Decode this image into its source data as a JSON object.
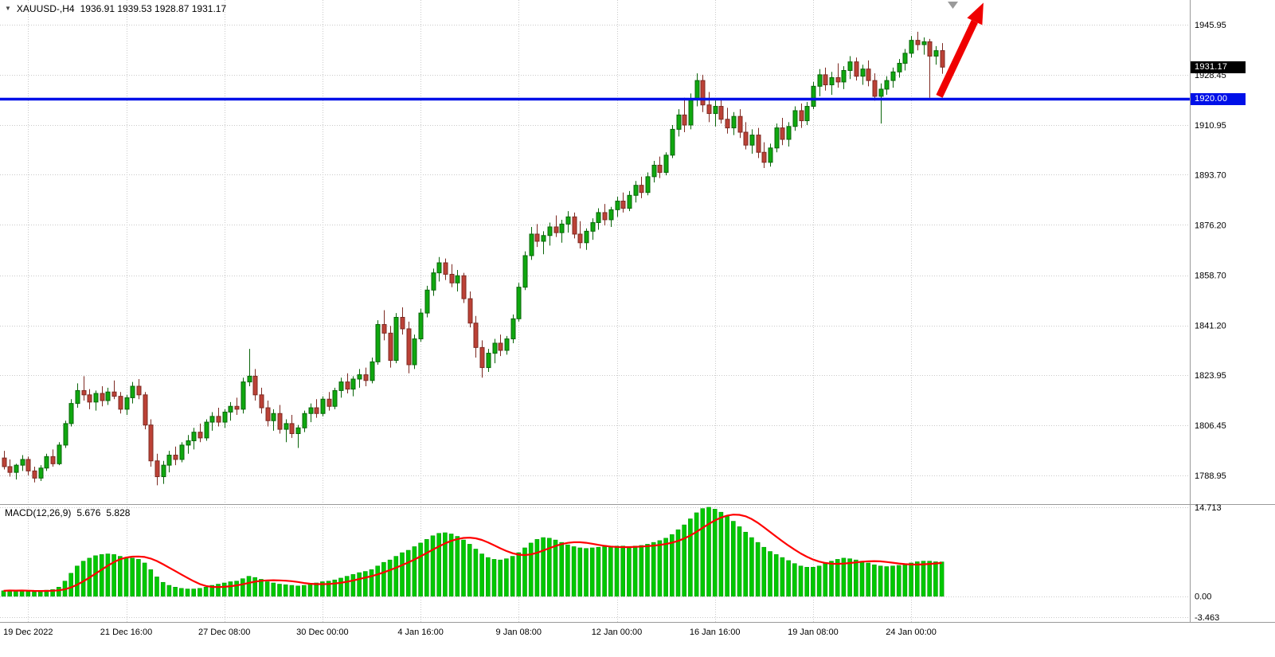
{
  "header": {
    "symbol_period": "XAUUSD-,H4",
    "ohlc": "1936.91 1939.53 1928.87 1931.17"
  },
  "icons": {
    "expand_triangle": "▼",
    "chart_shift_marker": "▼"
  },
  "colors": {
    "background": "#ffffff",
    "grid": "#c9c9c9",
    "up": {
      "fill": "#0fa80f",
      "border": "#0a650a"
    },
    "down": {
      "fill": "#bc4136",
      "border": "#7d2a22"
    },
    "support_line": "#0010e8",
    "arrow": "#f00000"
  },
  "chart_data": {
    "type": "candlestick",
    "symbol": "XAUUSD-",
    "timeframe": "H4",
    "grid": true,
    "current_bar": {
      "open": 1936.91,
      "high": 1939.53,
      "low": 1928.87,
      "close": 1931.17
    },
    "price_axis": {
      "visible_range": [
        1779.5,
        1954.55
      ],
      "current_price": 1931.17,
      "current_price_label": "1931.17",
      "ticks": [
        {
          "value": 1945.95,
          "label": "1945.95"
        },
        {
          "value": 1928.45,
          "label": "1928.45"
        },
        {
          "value": 1910.95,
          "label": "1910.95"
        },
        {
          "value": 1893.7,
          "label": "1893.70"
        },
        {
          "value": 1876.2,
          "label": "1876.20"
        },
        {
          "value": 1858.7,
          "label": "1858.70"
        },
        {
          "value": 1841.2,
          "label": "1841.20"
        },
        {
          "value": 1823.95,
          "label": "1823.95"
        },
        {
          "value": 1806.45,
          "label": "1806.45"
        },
        {
          "value": 1788.95,
          "label": "1788.95"
        }
      ]
    },
    "horizontal_line": {
      "price": 1920.0,
      "label": "1920.00",
      "color": "#0010e8"
    },
    "annotation_arrow": {
      "color": "#f00000",
      "from": {
        "bar": 152.6,
        "price": 1921.0
      },
      "to": {
        "bar": 159.8,
        "price": 1953.6
      }
    },
    "time_ticks": [
      {
        "index": 4,
        "label": "19 Dec 2022"
      },
      {
        "index": 20,
        "label": "21 Dec 16:00"
      },
      {
        "index": 36,
        "label": "27 Dec 08:00"
      },
      {
        "index": 52,
        "label": "30 Dec 00:00"
      },
      {
        "index": 68,
        "label": "4 Jan 16:00"
      },
      {
        "index": 84,
        "label": "9 Jan 08:00"
      },
      {
        "index": 100,
        "label": "12 Jan 00:00"
      },
      {
        "index": 116,
        "label": "16 Jan 16:00"
      },
      {
        "index": 132,
        "label": "19 Jan 08:00"
      },
      {
        "index": 148,
        "label": "24 Jan 00:00"
      }
    ],
    "candles": [
      [
        1795.0,
        1797.5,
        1791.0,
        1792.0
      ],
      [
        1792.0,
        1794.5,
        1788.5,
        1790.0
      ],
      [
        1790.0,
        1793.0,
        1787.5,
        1792.5
      ],
      [
        1792.5,
        1796.0,
        1790.5,
        1794.5
      ],
      [
        1794.5,
        1795.5,
        1789.0,
        1790.5
      ],
      [
        1790.5,
        1792.0,
        1786.5,
        1788.0
      ],
      [
        1788.0,
        1792.5,
        1787.0,
        1791.5
      ],
      [
        1791.5,
        1796.5,
        1790.5,
        1795.5
      ],
      [
        1795.5,
        1798.0,
        1792.0,
        1793.0
      ],
      [
        1793.0,
        1800.5,
        1792.5,
        1799.5
      ],
      [
        1799.5,
        1808.0,
        1798.5,
        1807.0
      ],
      [
        1807.0,
        1815.5,
        1806.0,
        1814.0
      ],
      [
        1814.0,
        1821.0,
        1812.5,
        1818.5
      ],
      [
        1818.5,
        1823.5,
        1815.0,
        1817.0
      ],
      [
        1817.0,
        1819.0,
        1812.0,
        1814.5
      ],
      [
        1814.5,
        1818.5,
        1811.5,
        1817.5
      ],
      [
        1817.5,
        1820.0,
        1813.0,
        1815.0
      ],
      [
        1815.0,
        1819.5,
        1813.5,
        1818.0
      ],
      [
        1818.0,
        1822.0,
        1815.5,
        1816.5
      ],
      [
        1816.5,
        1818.0,
        1810.5,
        1812.0
      ],
      [
        1812.0,
        1817.0,
        1810.0,
        1816.0
      ],
      [
        1816.0,
        1821.5,
        1814.0,
        1820.0
      ],
      [
        1820.0,
        1822.5,
        1815.5,
        1817.0
      ],
      [
        1817.0,
        1818.0,
        1805.0,
        1806.5
      ],
      [
        1806.5,
        1808.5,
        1792.0,
        1794.0
      ],
      [
        1794.0,
        1796.5,
        1785.5,
        1788.5
      ],
      [
        1788.5,
        1794.0,
        1786.0,
        1792.5
      ],
      [
        1792.5,
        1797.5,
        1790.0,
        1796.0
      ],
      [
        1796.0,
        1799.0,
        1792.5,
        1794.5
      ],
      [
        1794.5,
        1800.5,
        1793.5,
        1799.5
      ],
      [
        1799.5,
        1803.0,
        1796.5,
        1801.0
      ],
      [
        1801.0,
        1805.5,
        1798.0,
        1804.0
      ],
      [
        1804.0,
        1807.0,
        1800.5,
        1802.0
      ],
      [
        1802.0,
        1808.5,
        1801.0,
        1807.5
      ],
      [
        1807.5,
        1811.0,
        1804.5,
        1809.5
      ],
      [
        1809.5,
        1812.5,
        1806.0,
        1807.5
      ],
      [
        1807.5,
        1812.0,
        1805.5,
        1811.0
      ],
      [
        1811.0,
        1814.5,
        1808.0,
        1813.0
      ],
      [
        1813.0,
        1816.0,
        1810.0,
        1812.0
      ],
      [
        1812.0,
        1823.0,
        1810.5,
        1821.5
      ],
      [
        1821.5,
        1833.0,
        1820.0,
        1823.5
      ],
      [
        1823.5,
        1826.0,
        1815.0,
        1817.0
      ],
      [
        1817.0,
        1819.5,
        1810.5,
        1812.5
      ],
      [
        1812.5,
        1815.0,
        1806.0,
        1808.0
      ],
      [
        1808.0,
        1812.0,
        1804.5,
        1810.5
      ],
      [
        1810.5,
        1813.5,
        1803.5,
        1805.0
      ],
      [
        1805.0,
        1808.5,
        1800.5,
        1807.0
      ],
      [
        1807.0,
        1810.0,
        1802.0,
        1803.5
      ],
      [
        1803.5,
        1806.5,
        1798.5,
        1805.5
      ],
      [
        1805.5,
        1811.5,
        1804.0,
        1810.5
      ],
      [
        1810.5,
        1814.0,
        1807.5,
        1812.5
      ],
      [
        1812.5,
        1815.5,
        1809.0,
        1810.5
      ],
      [
        1810.5,
        1816.5,
        1809.5,
        1815.5
      ],
      [
        1815.5,
        1818.0,
        1811.5,
        1813.0
      ],
      [
        1813.0,
        1819.5,
        1812.0,
        1818.5
      ],
      [
        1818.5,
        1823.0,
        1816.0,
        1821.5
      ],
      [
        1821.5,
        1824.5,
        1817.5,
        1819.0
      ],
      [
        1819.0,
        1823.5,
        1816.5,
        1822.5
      ],
      [
        1822.5,
        1826.0,
        1819.5,
        1824.0
      ],
      [
        1824.0,
        1826.5,
        1820.0,
        1822.0
      ],
      [
        1822.0,
        1830.0,
        1821.0,
        1828.5
      ],
      [
        1828.5,
        1843.0,
        1827.5,
        1841.5
      ],
      [
        1841.5,
        1846.5,
        1836.0,
        1838.5
      ],
      [
        1838.5,
        1841.0,
        1826.5,
        1829.0
      ],
      [
        1829.0,
        1845.5,
        1828.0,
        1844.0
      ],
      [
        1844.0,
        1847.5,
        1838.0,
        1840.0
      ],
      [
        1840.0,
        1842.5,
        1824.5,
        1827.5
      ],
      [
        1827.5,
        1838.0,
        1826.0,
        1836.5
      ],
      [
        1836.5,
        1847.0,
        1835.5,
        1845.5
      ],
      [
        1845.5,
        1855.0,
        1844.0,
        1853.5
      ],
      [
        1853.5,
        1861.0,
        1851.5,
        1859.5
      ],
      [
        1859.5,
        1865.0,
        1856.5,
        1863.0
      ],
      [
        1863.0,
        1864.5,
        1857.0,
        1859.0
      ],
      [
        1859.0,
        1862.5,
        1854.5,
        1856.0
      ],
      [
        1856.0,
        1860.5,
        1853.0,
        1858.5
      ],
      [
        1858.5,
        1859.5,
        1849.0,
        1850.5
      ],
      [
        1850.5,
        1853.0,
        1840.5,
        1842.0
      ],
      [
        1842.0,
        1844.5,
        1830.0,
        1833.5
      ],
      [
        1833.5,
        1836.0,
        1823.0,
        1826.5
      ],
      [
        1826.5,
        1833.0,
        1825.0,
        1831.5
      ],
      [
        1831.5,
        1836.5,
        1828.0,
        1835.0
      ],
      [
        1835.0,
        1838.0,
        1830.5,
        1832.5
      ],
      [
        1832.5,
        1837.5,
        1831.0,
        1836.5
      ],
      [
        1836.5,
        1845.0,
        1835.0,
        1843.5
      ],
      [
        1843.5,
        1856.0,
        1842.5,
        1854.5
      ],
      [
        1854.5,
        1867.0,
        1853.5,
        1865.5
      ],
      [
        1865.5,
        1875.5,
        1864.0,
        1873.0
      ],
      [
        1873.0,
        1876.5,
        1868.5,
        1870.5
      ],
      [
        1870.5,
        1874.0,
        1866.0,
        1872.5
      ],
      [
        1872.5,
        1877.0,
        1869.0,
        1875.5
      ],
      [
        1875.5,
        1879.5,
        1872.0,
        1873.5
      ],
      [
        1873.5,
        1878.0,
        1870.0,
        1876.5
      ],
      [
        1876.5,
        1881.0,
        1873.5,
        1879.0
      ],
      [
        1879.0,
        1880.5,
        1871.5,
        1873.0
      ],
      [
        1873.0,
        1877.5,
        1868.0,
        1870.0
      ],
      [
        1870.0,
        1875.0,
        1867.5,
        1874.0
      ],
      [
        1874.0,
        1878.5,
        1871.0,
        1877.0
      ],
      [
        1877.0,
        1882.0,
        1874.5,
        1880.5
      ],
      [
        1880.5,
        1883.5,
        1876.0,
        1878.0
      ],
      [
        1878.0,
        1882.5,
        1875.5,
        1881.5
      ],
      [
        1881.5,
        1886.0,
        1879.0,
        1884.5
      ],
      [
        1884.5,
        1887.5,
        1880.5,
        1882.0
      ],
      [
        1882.0,
        1888.0,
        1881.0,
        1886.5
      ],
      [
        1886.5,
        1891.5,
        1884.0,
        1890.0
      ],
      [
        1890.0,
        1893.0,
        1885.5,
        1887.5
      ],
      [
        1887.5,
        1894.5,
        1886.5,
        1893.0
      ],
      [
        1893.0,
        1898.5,
        1891.0,
        1897.0
      ],
      [
        1897.0,
        1900.0,
        1892.5,
        1894.5
      ],
      [
        1894.5,
        1901.5,
        1893.5,
        1900.5
      ],
      [
        1900.5,
        1911.0,
        1899.5,
        1909.5
      ],
      [
        1909.5,
        1916.5,
        1907.0,
        1914.5
      ],
      [
        1914.5,
        1920.5,
        1908.5,
        1911.0
      ],
      [
        1911.0,
        1922.0,
        1909.5,
        1920.0
      ],
      [
        1920.0,
        1929.0,
        1917.5,
        1926.5
      ],
      [
        1926.5,
        1928.5,
        1915.5,
        1918.0
      ],
      [
        1918.0,
        1922.5,
        1912.0,
        1915.0
      ],
      [
        1915.0,
        1919.5,
        1910.5,
        1917.5
      ],
      [
        1917.5,
        1920.0,
        1911.5,
        1913.0
      ],
      [
        1913.0,
        1917.0,
        1908.0,
        1910.0
      ],
      [
        1910.0,
        1915.5,
        1907.5,
        1914.0
      ],
      [
        1914.0,
        1916.5,
        1906.5,
        1908.5
      ],
      [
        1908.5,
        1912.0,
        1902.5,
        1904.0
      ],
      [
        1904.0,
        1909.5,
        1901.0,
        1907.5
      ],
      [
        1907.5,
        1910.0,
        1899.5,
        1901.5
      ],
      [
        1901.5,
        1905.0,
        1896.0,
        1898.0
      ],
      [
        1898.0,
        1904.5,
        1896.5,
        1903.0
      ],
      [
        1903.0,
        1911.5,
        1901.5,
        1910.0
      ],
      [
        1910.0,
        1913.5,
        1904.0,
        1906.0
      ],
      [
        1906.0,
        1912.0,
        1903.5,
        1910.5
      ],
      [
        1910.5,
        1917.5,
        1909.0,
        1916.0
      ],
      [
        1916.0,
        1918.5,
        1910.0,
        1912.5
      ],
      [
        1912.5,
        1919.0,
        1911.0,
        1917.5
      ],
      [
        1917.5,
        1926.0,
        1916.5,
        1924.5
      ],
      [
        1924.5,
        1930.5,
        1921.0,
        1928.5
      ],
      [
        1928.5,
        1931.0,
        1923.0,
        1925.0
      ],
      [
        1925.0,
        1929.5,
        1921.5,
        1927.5
      ],
      [
        1927.5,
        1932.5,
        1924.0,
        1926.0
      ],
      [
        1926.0,
        1931.5,
        1923.5,
        1930.0
      ],
      [
        1930.0,
        1935.0,
        1927.0,
        1933.0
      ],
      [
        1933.0,
        1934.5,
        1926.5,
        1928.0
      ],
      [
        1928.0,
        1932.0,
        1925.0,
        1930.5
      ],
      [
        1930.5,
        1933.5,
        1924.5,
        1926.5
      ],
      [
        1926.5,
        1929.0,
        1919.5,
        1921.0
      ],
      [
        1921.0,
        1925.5,
        1911.5,
        1923.5
      ],
      [
        1923.5,
        1928.0,
        1921.5,
        1926.5
      ],
      [
        1926.5,
        1931.0,
        1924.0,
        1929.5
      ],
      [
        1929.5,
        1934.0,
        1927.5,
        1932.5
      ],
      [
        1932.5,
        1937.5,
        1930.0,
        1936.0
      ],
      [
        1936.0,
        1942.0,
        1934.5,
        1940.5
      ],
      [
        1940.5,
        1943.5,
        1937.0,
        1939.0
      ],
      [
        1939.0,
        1941.5,
        1935.5,
        1940.0
      ],
      [
        1940.0,
        1941.0,
        1920.5,
        1935.0
      ],
      [
        1935.0,
        1938.5,
        1932.0,
        1936.9
      ],
      [
        1936.91,
        1939.53,
        1928.87,
        1931.17
      ]
    ],
    "macd": {
      "label": "MACD(12,26,9)",
      "value_main": "5.676",
      "value_signal": "5.828",
      "histogram_color": "#00c800",
      "histogram_border": "#009a00",
      "signal_color": "#ff0000",
      "range": [
        -3.463,
        14.713
      ],
      "axis_ticks": [
        {
          "value": 14.713,
          "label": "14.713"
        },
        {
          "value": 0,
          "label": "0.00"
        },
        {
          "value": -3.463,
          "label": "-3.463"
        }
      ],
      "histogram": [
        0.9,
        1.0,
        0.9,
        1.0,
        0.8,
        0.7,
        0.8,
        1.0,
        1.1,
        1.5,
        2.5,
        3.8,
        5.0,
        5.8,
        6.3,
        6.7,
        6.9,
        7.0,
        6.9,
        6.6,
        6.4,
        6.3,
        6.1,
        5.5,
        4.4,
        3.2,
        2.3,
        1.8,
        1.5,
        1.3,
        1.2,
        1.2,
        1.3,
        1.5,
        1.8,
        2.0,
        2.2,
        2.4,
        2.5,
        2.9,
        3.3,
        3.1,
        2.8,
        2.4,
        2.2,
        2.0,
        1.9,
        1.8,
        1.7,
        1.8,
        2.0,
        2.2,
        2.4,
        2.5,
        2.7,
        3.0,
        3.3,
        3.6,
        3.9,
        4.1,
        4.4,
        5.0,
        5.6,
        6.0,
        6.6,
        7.2,
        7.6,
        8.2,
        8.8,
        9.4,
        10.0,
        10.4,
        10.5,
        10.3,
        9.9,
        9.3,
        8.6,
        7.8,
        7.0,
        6.4,
        6.1,
        6.0,
        6.2,
        6.6,
        7.2,
        8.0,
        8.8,
        9.4,
        9.7,
        9.6,
        9.3,
        8.9,
        8.5,
        8.2,
        8.0,
        7.9,
        8.0,
        8.1,
        8.2,
        8.2,
        8.3,
        8.3,
        8.2,
        8.3,
        8.4,
        8.6,
        8.9,
        9.2,
        9.6,
        10.2,
        11.0,
        11.8,
        12.8,
        13.8,
        14.5,
        14.713,
        14.4,
        13.9,
        13.2,
        12.4,
        11.5,
        10.6,
        9.7,
        8.9,
        8.1,
        7.4,
        6.9,
        6.4,
        5.9,
        5.4,
        5.0,
        4.8,
        4.8,
        5.0,
        5.4,
        5.8,
        6.1,
        6.3,
        6.2,
        6.0,
        5.8,
        5.5,
        5.2,
        5.0,
        4.9,
        5.0,
        5.1,
        5.3,
        5.5,
        5.7,
        5.8,
        5.8,
        5.7,
        5.676
      ]
    }
  }
}
